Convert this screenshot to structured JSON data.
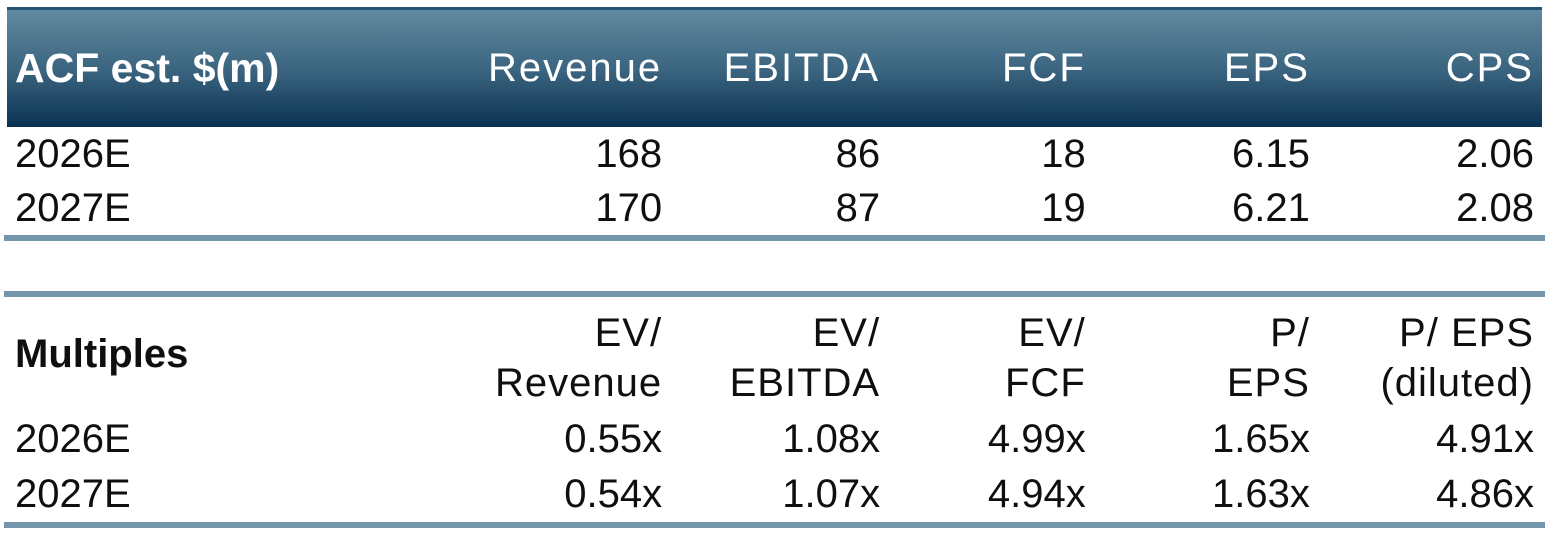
{
  "colors": {
    "background": "#ffffff",
    "header_gradient_top": "#61899f",
    "header_gradient_mid": "#3a647f",
    "header_gradient_bottom": "#0a3152",
    "header_top_border": "#255472",
    "divider": "#7396ab",
    "header_text": "#ffffff",
    "body_text": "#0f0f0f"
  },
  "estimates_table": {
    "title": "ACF est. $(m)",
    "columns": [
      "Revenue",
      "EBITDA",
      "FCF",
      "EPS",
      "CPS"
    ],
    "rows": [
      {
        "label": "2026E",
        "values": [
          "168",
          "86",
          "18",
          "6.15",
          "2.06"
        ]
      },
      {
        "label": "2027E",
        "values": [
          "170",
          "87",
          "19",
          "6.21",
          "2.08"
        ]
      }
    ]
  },
  "multiples_table": {
    "title": "Multiples",
    "columns": [
      {
        "line1": "EV/",
        "line2": "Revenue"
      },
      {
        "line1": "EV/",
        "line2": "EBITDA"
      },
      {
        "line1": "EV/",
        "line2": "FCF"
      },
      {
        "line1": "P/",
        "line2": "EPS"
      },
      {
        "line1": "P/ EPS",
        "line2": "(diluted)"
      }
    ],
    "rows": [
      {
        "label": "2026E",
        "values": [
          "0.55x",
          "1.08x",
          "4.99x",
          "1.65x",
          "4.91x"
        ]
      },
      {
        "label": "2027E",
        "values": [
          "0.54x",
          "1.07x",
          "4.94x",
          "1.63x",
          "4.86x"
        ]
      }
    ]
  }
}
